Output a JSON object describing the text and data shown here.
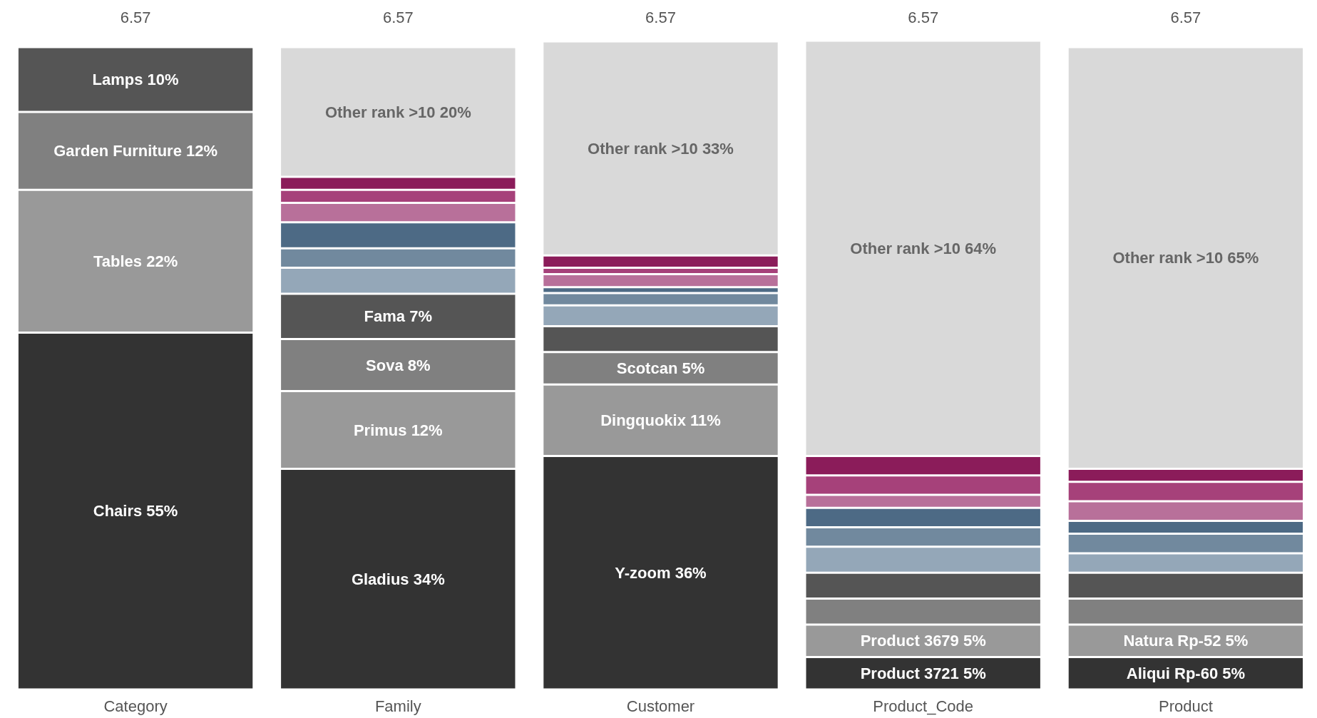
{
  "chart_data": {
    "type": "bar",
    "stacked": true,
    "categories": [
      "Category",
      "Family",
      "Customer",
      "Product_Code",
      "Product"
    ],
    "ylim": [
      0,
      100
    ],
    "tick_labels": "x",
    "grid": false,
    "annotations": [
      "6.57",
      "6.57",
      "6.57",
      "6.57",
      "6.57"
    ],
    "series": [
      {
        "color": "#333333",
        "values": [
          55,
          34,
          36,
          5,
          5
        ],
        "value_labels": [
          "Chairs 55%",
          "Gladius 34%",
          "Y-zoom 36%",
          "Product 3721 5%",
          "Aliqui Rp-60 5%"
        ]
      },
      {
        "color": "#999999",
        "values": [
          22,
          12,
          11,
          5,
          5
        ],
        "value_labels": [
          "Tables 22%",
          "Primus 12%",
          "Dingquokix 11%",
          "Product 3679 5%",
          "Natura Rp-52 5%"
        ]
      },
      {
        "color": "#808080",
        "values": [
          12,
          8,
          5,
          4,
          4
        ],
        "value_labels": [
          "Garden Furniture 12%",
          "Sova 8%",
          "Scotcan 5%",
          null,
          null
        ]
      },
      {
        "color": "#555555",
        "values": [
          10,
          7,
          4,
          4,
          4
        ],
        "value_labels": [
          "Lamps 10%",
          "Fama 7%",
          null,
          null,
          null
        ]
      },
      {
        "color": "#94a7b8",
        "values": [
          null,
          4,
          3.2,
          4,
          3
        ]
      },
      {
        "color": "#71899e",
        "values": [
          null,
          3,
          1.9,
          3,
          3
        ]
      },
      {
        "color": "#4d6a85",
        "values": [
          null,
          4,
          0.9,
          3,
          2
        ]
      },
      {
        "color": "#b8709a",
        "values": [
          null,
          3,
          2,
          2,
          3
        ]
      },
      {
        "color": "#a6417a",
        "values": [
          null,
          2,
          1,
          3,
          3
        ]
      },
      {
        "color": "#8b1c5a",
        "values": [
          null,
          2,
          1.9,
          3,
          2
        ]
      },
      {
        "color": "#d9d9d9",
        "values": [
          null,
          20,
          33,
          64,
          65
        ],
        "value_labels": [
          null,
          "Other rank >10 20%",
          "Other rank >10 33%",
          "Other rank >10 64%",
          "Other rank >10 65%"
        ]
      }
    ]
  }
}
